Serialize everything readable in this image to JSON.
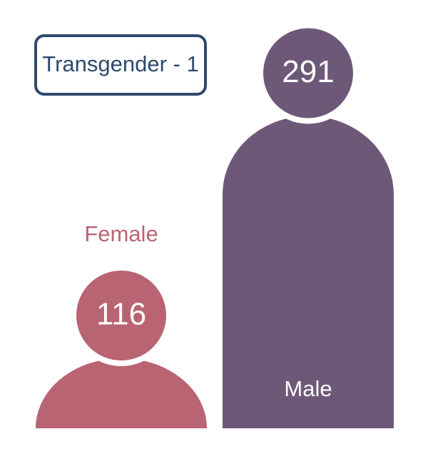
{
  "chart_data": {
    "type": "pictogram",
    "annotation": "Transgender - 1",
    "categories": [
      "Female",
      "Male"
    ],
    "values": [
      116,
      291
    ],
    "colors": [
      "#b96473",
      "#6e5878"
    ]
  }
}
